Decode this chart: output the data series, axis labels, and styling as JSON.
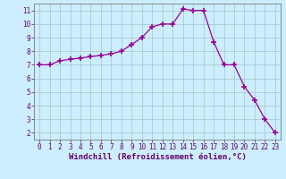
{
  "x": [
    0,
    1,
    2,
    3,
    4,
    5,
    6,
    7,
    8,
    9,
    10,
    11,
    12,
    13,
    14,
    15,
    16,
    17,
    18,
    19,
    20,
    21,
    22,
    23
  ],
  "y": [
    7.0,
    7.0,
    7.3,
    7.4,
    7.5,
    7.6,
    7.7,
    7.8,
    8.0,
    8.5,
    9.0,
    9.8,
    10.0,
    10.0,
    11.1,
    11.0,
    11.0,
    8.7,
    7.0,
    7.0,
    5.4,
    4.4,
    3.0,
    2.0
  ],
  "line_color": "#990099",
  "marker": "+",
  "marker_size": 4,
  "marker_lw": 1.2,
  "bg_color": "#cceeff",
  "grid_color": "#aacccc",
  "xlabel": "Windchill (Refroidissement éolien,°C)",
  "xlim": [
    -0.5,
    23.5
  ],
  "ylim": [
    1.5,
    11.5
  ],
  "yticks": [
    2,
    3,
    4,
    5,
    6,
    7,
    8,
    9,
    10,
    11
  ],
  "xticks": [
    0,
    1,
    2,
    3,
    4,
    5,
    6,
    7,
    8,
    9,
    10,
    11,
    12,
    13,
    14,
    15,
    16,
    17,
    18,
    19,
    20,
    21,
    22,
    23
  ],
  "tick_fontsize": 5.5,
  "xlabel_fontsize": 6.5,
  "line_color_dark": "#660066",
  "spine_color": "#666666"
}
